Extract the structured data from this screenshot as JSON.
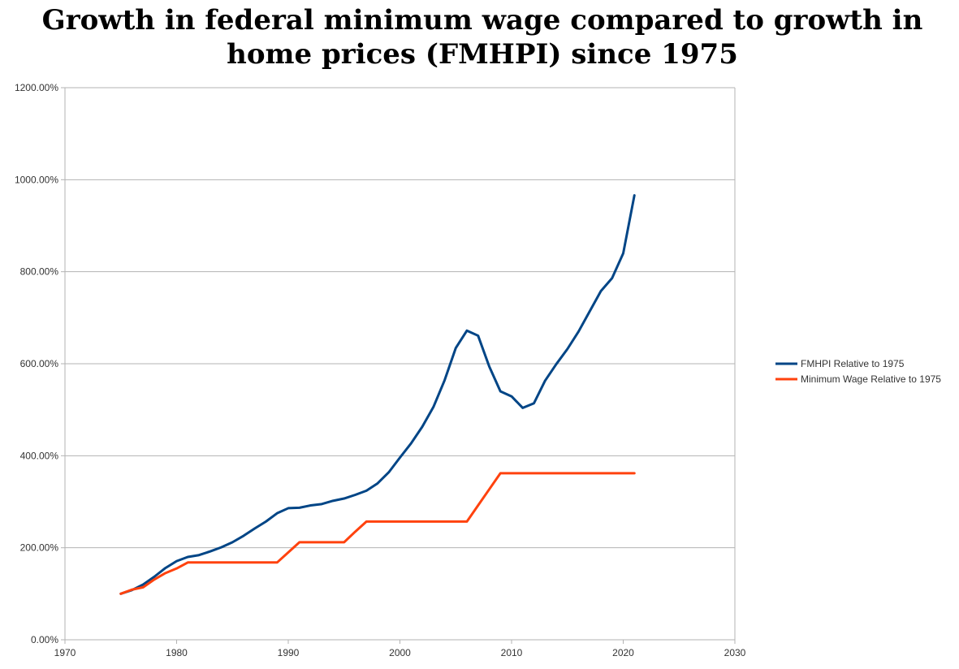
{
  "chart_data": {
    "type": "line",
    "title": "Growth in federal minimum wage compared to growth in home prices (FMHPI) since 1975",
    "xlabel": "",
    "ylabel": "",
    "xlim": [
      1970,
      2030
    ],
    "ylim": [
      0,
      1200
    ],
    "x_ticks": [
      1970,
      1980,
      1990,
      2000,
      2010,
      2020,
      2030
    ],
    "x_tick_labels": [
      "1970",
      "1980",
      "1990",
      "2000",
      "2010",
      "2020",
      "2030"
    ],
    "y_ticks": [
      0,
      200,
      400,
      600,
      800,
      1000,
      1200
    ],
    "y_tick_labels": [
      "0.00%",
      "200.00%",
      "400.00%",
      "600.00%",
      "800.00%",
      "1000.00%",
      "1200.00%"
    ],
    "grid": "horizontal",
    "legend_position": "right",
    "series": [
      {
        "name": "FMHPI Relative to 1975",
        "color": "#004586",
        "points": [
          [
            1975,
            100
          ],
          [
            1976,
            108
          ],
          [
            1977,
            120
          ],
          [
            1978,
            137
          ],
          [
            1979,
            156
          ],
          [
            1980,
            171
          ],
          [
            1981,
            180
          ],
          [
            1982,
            184
          ],
          [
            1983,
            192
          ],
          [
            1984,
            201
          ],
          [
            1985,
            212
          ],
          [
            1986,
            226
          ],
          [
            1987,
            242
          ],
          [
            1988,
            257
          ],
          [
            1989,
            275
          ],
          [
            1990,
            286
          ],
          [
            1991,
            287
          ],
          [
            1992,
            292
          ],
          [
            1993,
            295
          ],
          [
            1994,
            302
          ],
          [
            1995,
            307
          ],
          [
            1996,
            315
          ],
          [
            1997,
            324
          ],
          [
            1998,
            340
          ],
          [
            1999,
            364
          ],
          [
            2000,
            396
          ],
          [
            2001,
            427
          ],
          [
            2002,
            463
          ],
          [
            2003,
            506
          ],
          [
            2004,
            564
          ],
          [
            2005,
            634
          ],
          [
            2006,
            672
          ],
          [
            2007,
            661
          ],
          [
            2008,
            594
          ],
          [
            2009,
            540
          ],
          [
            2010,
            529
          ],
          [
            2011,
            504
          ],
          [
            2012,
            514
          ],
          [
            2013,
            563
          ],
          [
            2014,
            599
          ],
          [
            2015,
            632
          ],
          [
            2016,
            670
          ],
          [
            2017,
            714
          ],
          [
            2018,
            758
          ],
          [
            2019,
            786
          ],
          [
            2020,
            840
          ],
          [
            2021,
            966
          ]
        ]
      },
      {
        "name": "Minimum Wage Relative to 1975",
        "color": "#FF420E",
        "points": [
          [
            1975,
            100
          ],
          [
            1976,
            109
          ],
          [
            1977,
            114
          ],
          [
            1978,
            131
          ],
          [
            1979,
            145
          ],
          [
            1980,
            155
          ],
          [
            1981,
            168
          ],
          [
            1989,
            168
          ],
          [
            1990,
            190
          ],
          [
            1991,
            212
          ],
          [
            1995,
            212
          ],
          [
            1996,
            235
          ],
          [
            1997,
            257
          ],
          [
            2006,
            257
          ],
          [
            2007,
            292
          ],
          [
            2008,
            327
          ],
          [
            2009,
            362
          ],
          [
            2021,
            362
          ]
        ]
      }
    ]
  }
}
